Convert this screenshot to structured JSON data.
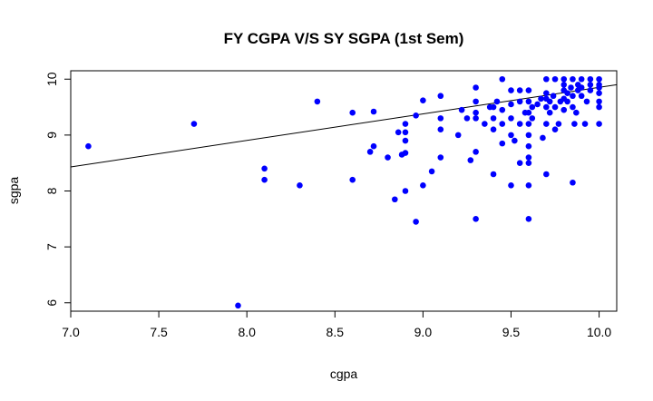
{
  "chart_data": {
    "type": "scatter",
    "title": "FY CGPA V/S SY SGPA (1st Sem)",
    "xlabel": "cgpa",
    "ylabel": "sgpa",
    "xlim": [
      7.0,
      10.1
    ],
    "ylim": [
      5.85,
      10.15
    ],
    "xticks": [
      "7.0",
      "7.5",
      "8.0",
      "8.5",
      "9.0",
      "9.5",
      "10.0"
    ],
    "yticks": [
      "6",
      "7",
      "8",
      "9",
      "10"
    ],
    "grid": false,
    "point_color": "#0000ff",
    "line_color": "#000000",
    "regression_line": {
      "x": [
        7.0,
        10.1
      ],
      "y": [
        8.43,
        9.9
      ]
    },
    "points": [
      [
        7.1,
        8.8
      ],
      [
        7.7,
        9.2
      ],
      [
        7.95,
        5.95
      ],
      [
        8.1,
        8.4
      ],
      [
        8.1,
        8.2
      ],
      [
        8.3,
        8.1
      ],
      [
        8.4,
        9.6
      ],
      [
        8.6,
        9.4
      ],
      [
        8.6,
        8.2
      ],
      [
        8.7,
        8.7
      ],
      [
        8.72,
        8.8
      ],
      [
        8.72,
        9.42
      ],
      [
        8.8,
        8.6
      ],
      [
        8.84,
        7.85
      ],
      [
        8.86,
        9.05
      ],
      [
        8.88,
        8.65
      ],
      [
        8.9,
        8.0
      ],
      [
        8.9,
        8.68
      ],
      [
        8.9,
        8.9
      ],
      [
        8.9,
        9.05
      ],
      [
        8.9,
        9.2
      ],
      [
        8.96,
        7.45
      ],
      [
        8.96,
        9.35
      ],
      [
        9.0,
        8.1
      ],
      [
        9.0,
        9.62
      ],
      [
        9.05,
        8.35
      ],
      [
        9.1,
        8.6
      ],
      [
        9.1,
        9.1
      ],
      [
        9.1,
        9.3
      ],
      [
        9.1,
        9.7
      ],
      [
        9.2,
        9.0
      ],
      [
        9.22,
        9.45
      ],
      [
        9.25,
        9.3
      ],
      [
        9.27,
        8.55
      ],
      [
        9.3,
        7.5
      ],
      [
        9.3,
        8.7
      ],
      [
        9.3,
        9.3
      ],
      [
        9.3,
        9.4
      ],
      [
        9.3,
        9.6
      ],
      [
        9.3,
        9.85
      ],
      [
        9.35,
        9.2
      ],
      [
        9.38,
        9.5
      ],
      [
        9.4,
        8.3
      ],
      [
        9.4,
        9.1
      ],
      [
        9.4,
        9.3
      ],
      [
        9.4,
        9.5
      ],
      [
        9.42,
        9.6
      ],
      [
        9.45,
        8.85
      ],
      [
        9.45,
        9.2
      ],
      [
        9.45,
        9.45
      ],
      [
        9.45,
        10.0
      ],
      [
        9.5,
        8.1
      ],
      [
        9.5,
        9.0
      ],
      [
        9.5,
        9.3
      ],
      [
        9.5,
        9.55
      ],
      [
        9.5,
        9.8
      ],
      [
        9.52,
        8.9
      ],
      [
        9.55,
        8.5
      ],
      [
        9.55,
        9.2
      ],
      [
        9.55,
        9.6
      ],
      [
        9.55,
        9.8
      ],
      [
        9.58,
        9.4
      ],
      [
        9.6,
        7.5
      ],
      [
        9.6,
        8.1
      ],
      [
        9.6,
        8.5
      ],
      [
        9.6,
        8.6
      ],
      [
        9.6,
        8.8
      ],
      [
        9.6,
        9.0
      ],
      [
        9.6,
        9.2
      ],
      [
        9.6,
        9.4
      ],
      [
        9.6,
        9.6
      ],
      [
        9.6,
        9.8
      ],
      [
        9.62,
        9.3
      ],
      [
        9.62,
        9.5
      ],
      [
        9.65,
        9.55
      ],
      [
        9.67,
        9.65
      ],
      [
        9.68,
        8.95
      ],
      [
        9.7,
        8.3
      ],
      [
        9.7,
        9.2
      ],
      [
        9.7,
        9.5
      ],
      [
        9.7,
        9.65
      ],
      [
        9.7,
        9.75
      ],
      [
        9.7,
        10.0
      ],
      [
        9.72,
        9.4
      ],
      [
        9.72,
        9.6
      ],
      [
        9.74,
        9.7
      ],
      [
        9.75,
        9.5
      ],
      [
        9.75,
        9.1
      ],
      [
        9.75,
        10.0
      ],
      [
        9.77,
        9.2
      ],
      [
        9.78,
        9.6
      ],
      [
        9.8,
        9.45
      ],
      [
        9.8,
        9.65
      ],
      [
        9.8,
        9.8
      ],
      [
        9.8,
        9.9
      ],
      [
        9.8,
        10.0
      ],
      [
        9.82,
        9.6
      ],
      [
        9.82,
        9.75
      ],
      [
        9.84,
        9.85
      ],
      [
        9.85,
        8.15
      ],
      [
        9.85,
        9.5
      ],
      [
        9.85,
        9.7
      ],
      [
        9.85,
        10.0
      ],
      [
        9.86,
        9.2
      ],
      [
        9.87,
        9.4
      ],
      [
        9.88,
        9.8
      ],
      [
        9.88,
        9.9
      ],
      [
        9.9,
        9.7
      ],
      [
        9.9,
        9.85
      ],
      [
        9.9,
        10.0
      ],
      [
        9.92,
        9.2
      ],
      [
        9.93,
        9.6
      ],
      [
        9.95,
        9.8
      ],
      [
        9.95,
        9.9
      ],
      [
        9.95,
        10.0
      ],
      [
        10.0,
        9.2
      ],
      [
        10.0,
        9.5
      ],
      [
        10.0,
        9.6
      ],
      [
        10.0,
        9.75
      ],
      [
        10.0,
        9.85
      ],
      [
        10.0,
        9.9
      ],
      [
        10.0,
        10.0
      ]
    ]
  }
}
